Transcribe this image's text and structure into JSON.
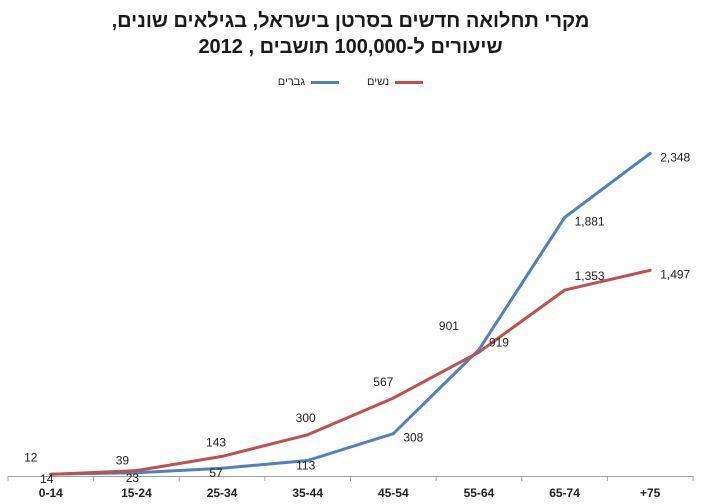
{
  "title": {
    "line1": "מקרי תחלואה חדשים בסרטן בישראל, בגילאים שונים,",
    "line2": "שיעורים ל-100,000 תושבים , 2012"
  },
  "colors": {
    "men": "#4f81bd",
    "women": "#c0504d",
    "axis": "#a0a0a0"
  },
  "chart_data": {
    "type": "line",
    "categories": [
      "0-14",
      "15-24",
      "25-34",
      "35-44",
      "45-54",
      "55-64",
      "65-74",
      "+75"
    ],
    "series": [
      {
        "name": "גברים",
        "values": [
          14,
          23,
          57,
          113,
          308,
          919,
          1881,
          2348
        ]
      },
      {
        "name": "נשים",
        "values": [
          12,
          39,
          143,
          300,
          567,
          901,
          1353,
          1497
        ]
      }
    ],
    "data_labels": {
      "men": [
        "14",
        "23",
        "57",
        "113",
        "308",
        "919",
        "1,881",
        "2,348"
      ],
      "women": [
        "12",
        "39",
        "143",
        "300",
        "567",
        "901",
        "1,353",
        "1,497"
      ]
    },
    "ylim": [
      0,
      2700
    ],
    "legend_position": "top-center",
    "grid": false
  }
}
